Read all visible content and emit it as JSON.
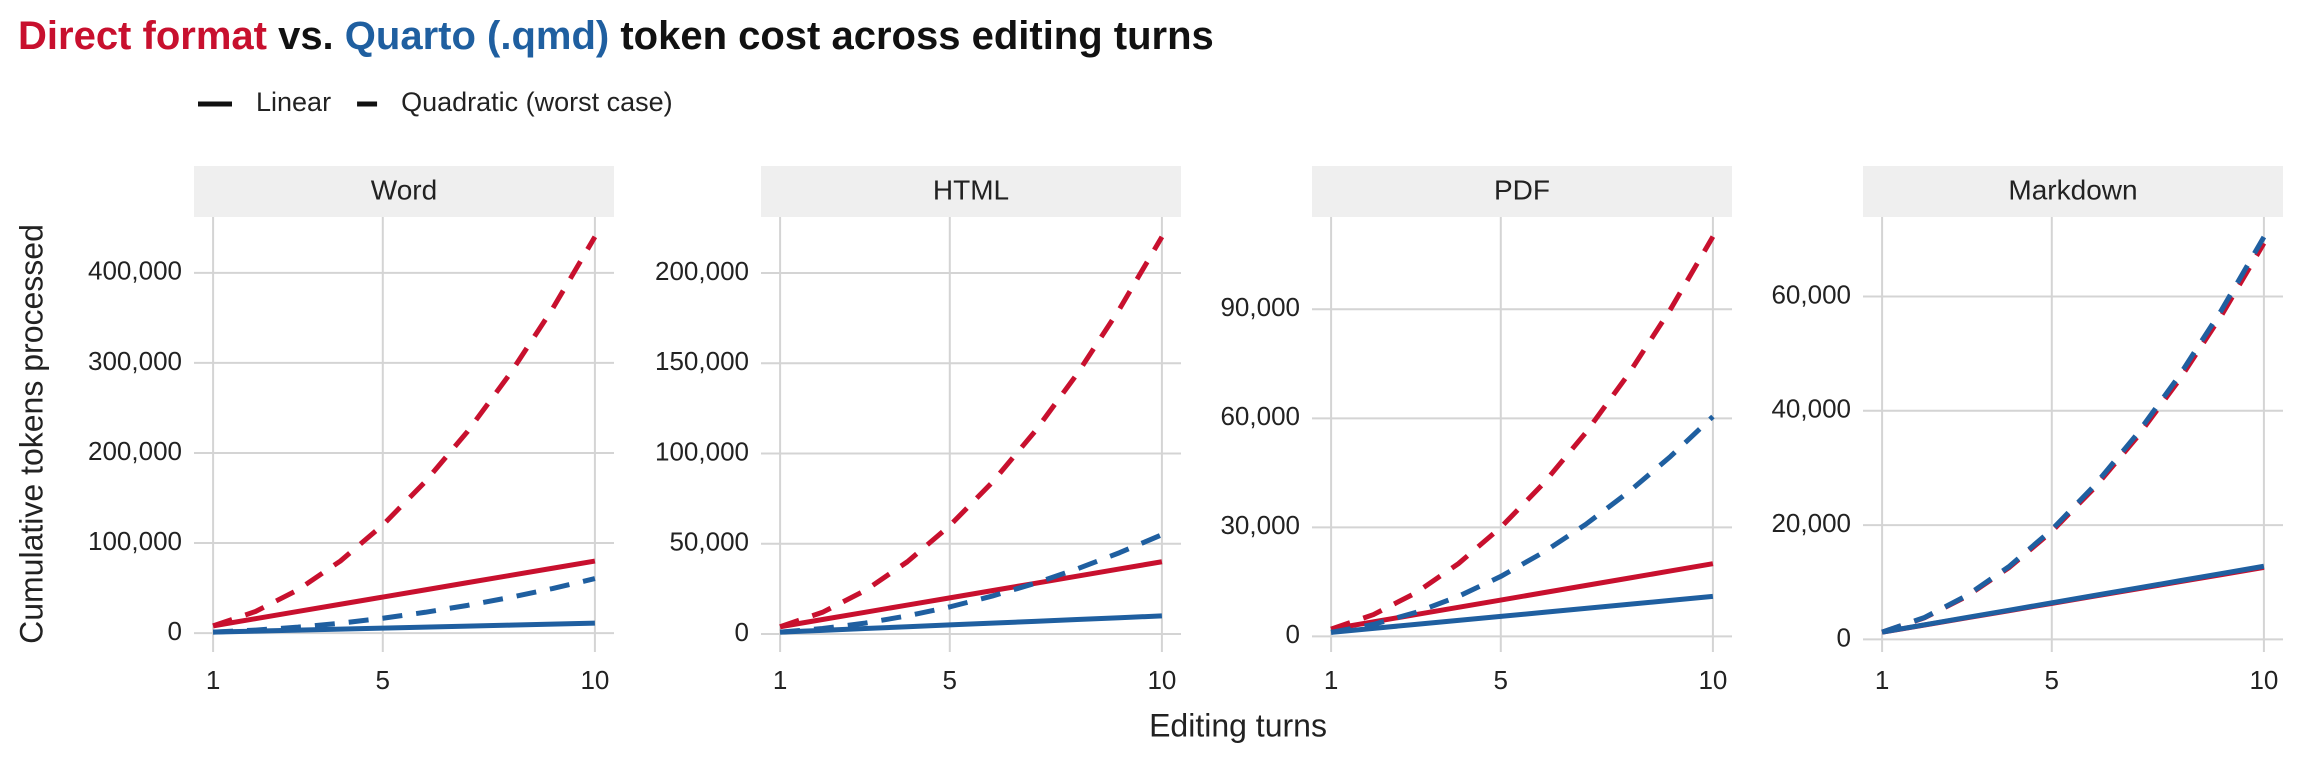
{
  "chart_data": {
    "type": "line",
    "title_segments": [
      {
        "text": "Direct format",
        "color": "#c8102e"
      },
      {
        "text": " vs. ",
        "color": "#111111"
      },
      {
        "text": "Quarto (.qmd)",
        "color": "#1f5fa0"
      },
      {
        "text": " token cost across editing turns",
        "color": "#111111"
      }
    ],
    "legend": [
      {
        "label": "Linear",
        "dash": false
      },
      {
        "label": "Quadratic (worst case)",
        "dash": true
      }
    ],
    "x_label": "Editing turns",
    "y_label": "Cumulative tokens processed",
    "grid": true,
    "x": [
      1,
      2,
      3,
      4,
      5,
      6,
      7,
      8,
      9,
      10
    ],
    "xlim": [
      0.55,
      10.45
    ],
    "xticks": [
      1,
      5,
      10
    ],
    "panels": [
      {
        "title": "Word",
        "ylim": [
          -21000,
          462000
        ],
        "yticks": [
          0,
          {
            "value": 100000,
            "label": "100,000"
          },
          {
            "value": 200000,
            "label": "200,000"
          },
          {
            "value": 300000,
            "label": "300,000"
          },
          {
            "value": 400000,
            "label": "400,000"
          }
        ],
        "series": [
          {
            "color": "#c8102e",
            "dash": false,
            "values": [
              8000,
              16000,
              24000,
              32000,
              40000,
              48000,
              56000,
              64000,
              72000,
              80000
            ]
          },
          {
            "color": "#c8102e",
            "dash": true,
            "values": [
              8000,
              24000,
              48000,
              80000,
              120000,
              168000,
              224000,
              288000,
              360000,
              440000
            ]
          },
          {
            "color": "#1f5fa0",
            "dash": false,
            "values": [
              1100,
              2200,
              3300,
              4400,
              5500,
              6600,
              7700,
              8800,
              9900,
              11000
            ]
          },
          {
            "color": "#1f5fa0",
            "dash": true,
            "values": [
              1100,
              3300,
              6600,
              11000,
              16500,
              23100,
              30800,
              39600,
              49500,
              60500
            ]
          }
        ]
      },
      {
        "title": "HTML",
        "ylim": [
          -10000,
          231000
        ],
        "yticks": [
          0,
          {
            "value": 50000,
            "label": "50,000"
          },
          {
            "value": 100000,
            "label": "100,000"
          },
          {
            "value": 150000,
            "label": "150,000"
          },
          {
            "value": 200000,
            "label": "200,000"
          }
        ],
        "series": [
          {
            "color": "#c8102e",
            "dash": false,
            "values": [
              4000,
              8000,
              12000,
              16000,
              20000,
              24000,
              28000,
              32000,
              36000,
              40000
            ]
          },
          {
            "color": "#c8102e",
            "dash": true,
            "values": [
              4000,
              12000,
              24000,
              40000,
              60000,
              84000,
              112000,
              144000,
              180000,
              220000
            ]
          },
          {
            "color": "#1f5fa0",
            "dash": false,
            "values": [
              1000,
              2000,
              3000,
              4000,
              5000,
              6000,
              7000,
              8000,
              9000,
              10000
            ]
          },
          {
            "color": "#1f5fa0",
            "dash": true,
            "values": [
              1000,
              3000,
              6000,
              10000,
              15000,
              21000,
              28000,
              36000,
              45000,
              55000
            ]
          }
        ]
      },
      {
        "title": "PDF",
        "ylim": [
          -4300,
          115400
        ],
        "yticks": [
          0,
          {
            "value": 30000,
            "label": "30,000"
          },
          {
            "value": 60000,
            "label": "60,000"
          },
          {
            "value": 90000,
            "label": "90,000"
          }
        ],
        "series": [
          {
            "color": "#c8102e",
            "dash": false,
            "values": [
              2000,
              4000,
              6000,
              8000,
              10000,
              12000,
              14000,
              16000,
              18000,
              20000
            ]
          },
          {
            "color": "#c8102e",
            "dash": true,
            "values": [
              2000,
              6000,
              12000,
              20000,
              30000,
              42000,
              56000,
              72000,
              90000,
              110000
            ]
          },
          {
            "color": "#1f5fa0",
            "dash": false,
            "values": [
              1100,
              2200,
              3300,
              4400,
              5500,
              6600,
              7700,
              8800,
              9900,
              11000
            ]
          },
          {
            "color": "#1f5fa0",
            "dash": true,
            "values": [
              1100,
              3300,
              6600,
              11000,
              16500,
              23100,
              30800,
              39600,
              49500,
              60500
            ]
          }
        ]
      },
      {
        "title": "Markdown",
        "ylim": [
          -2200,
          73900
        ],
        "yticks": [
          0,
          {
            "value": 20000,
            "label": "20,000"
          },
          {
            "value": 40000,
            "label": "40,000"
          },
          {
            "value": 60000,
            "label": "60,000"
          }
        ],
        "series": [
          {
            "color": "#c8102e",
            "dash": false,
            "values": [
              1260,
              2520,
              3780,
              5040,
              6300,
              7560,
              8820,
              10080,
              11340,
              12600
            ]
          },
          {
            "color": "#c8102e",
            "dash": true,
            "values": [
              1260,
              3780,
              7560,
              12600,
              18900,
              26460,
              35280,
              45360,
              56700,
              69300
            ]
          },
          {
            "color": "#1f5fa0",
            "dash": false,
            "values": [
              1280,
              2560,
              3840,
              5120,
              6400,
              7680,
              8960,
              10240,
              11520,
              12800
            ]
          },
          {
            "color": "#1f5fa0",
            "dash": true,
            "values": [
              1280,
              3840,
              7680,
              12800,
              19200,
              26880,
              35840,
              46080,
              57600,
              70400
            ]
          }
        ]
      }
    ]
  }
}
